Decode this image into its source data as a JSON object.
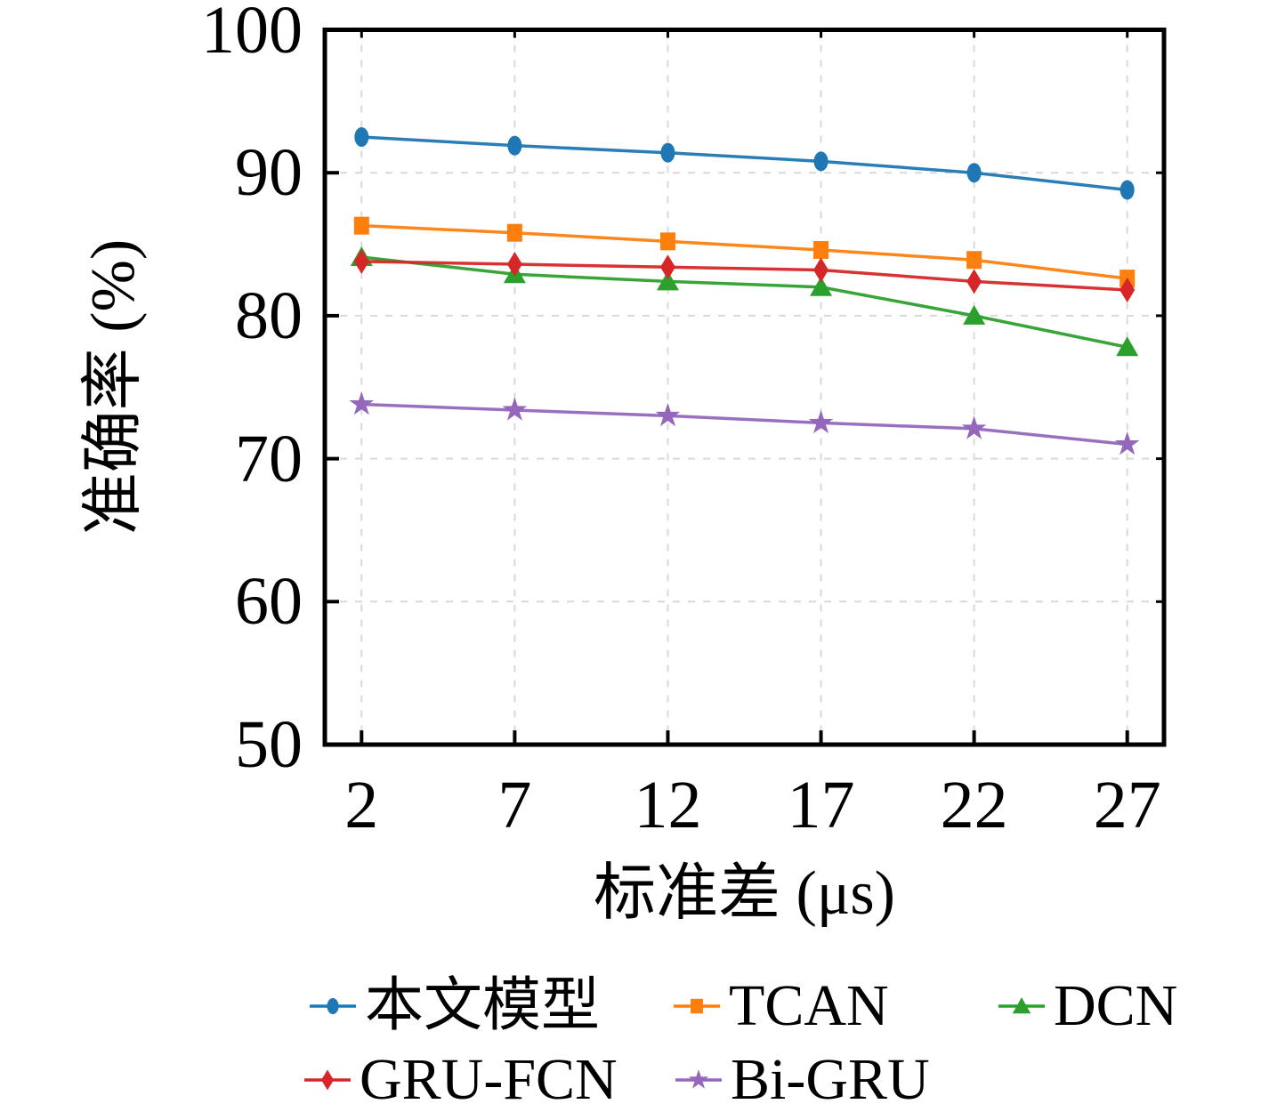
{
  "figure": {
    "background": "#ffffff",
    "border_color": "#000000",
    "grid_color": "#d9d9d9"
  },
  "chart_data": {
    "type": "line",
    "title": "",
    "xlabel": "标准差 (μs)",
    "ylabel": "准确率 (%)",
    "x": [
      2,
      7,
      12,
      17,
      22,
      27
    ],
    "xticks": [
      "2",
      "7",
      "12",
      "17",
      "22",
      "27"
    ],
    "yticks": [
      "50",
      "60",
      "70",
      "80",
      "90",
      "100"
    ],
    "xlim": [
      0.8,
      28.2
    ],
    "ylim": [
      50,
      100
    ],
    "grid": "dashed gridlines at every tick, both axes",
    "legend_position": "below plot, two rows",
    "series": [
      {
        "name": "本文模型",
        "marker": "circle",
        "color": "#1f77b4",
        "values": [
          92.5,
          91.9,
          91.4,
          90.8,
          90.0,
          88.8
        ]
      },
      {
        "name": "TCAN",
        "marker": "square",
        "color": "#ff7f0e",
        "values": [
          86.3,
          85.8,
          85.2,
          84.6,
          83.9,
          82.6
        ]
      },
      {
        "name": "DCN",
        "marker": "triangle",
        "color": "#2ca02c",
        "values": [
          84.1,
          82.9,
          82.4,
          82.0,
          80.0,
          77.8
        ]
      },
      {
        "name": "GRU-FCN",
        "marker": "diamond",
        "color": "#d62728",
        "values": [
          83.8,
          83.6,
          83.4,
          83.2,
          82.4,
          81.8
        ]
      },
      {
        "name": "Bi-GRU",
        "marker": "star",
        "color": "#9467bd",
        "values": [
          73.8,
          73.4,
          73.0,
          72.5,
          72.1,
          71.0
        ]
      }
    ]
  }
}
